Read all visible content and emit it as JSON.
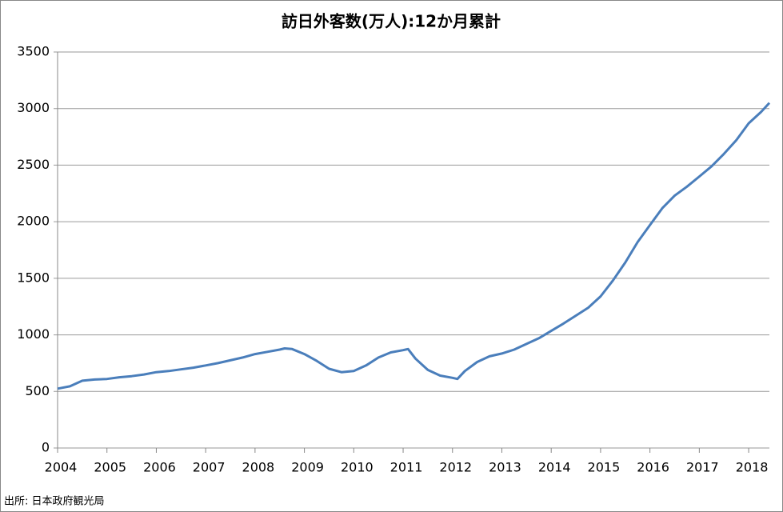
{
  "chart_data": {
    "type": "line",
    "title": "訪日外客数(万人):12か月累計",
    "source": "出所: 日本政府観光局",
    "x": [
      2004.0,
      2004.25,
      2004.5,
      2004.75,
      2005.0,
      2005.25,
      2005.5,
      2005.75,
      2006.0,
      2006.25,
      2006.5,
      2006.75,
      2007.0,
      2007.25,
      2007.5,
      2007.75,
      2008.0,
      2008.25,
      2008.5,
      2008.6,
      2008.75,
      2009.0,
      2009.25,
      2009.5,
      2009.75,
      2010.0,
      2010.25,
      2010.5,
      2010.75,
      2011.0,
      2011.1,
      2011.25,
      2011.5,
      2011.75,
      2012.0,
      2012.1,
      2012.25,
      2012.5,
      2012.75,
      2013.0,
      2013.25,
      2013.5,
      2013.75,
      2014.0,
      2014.25,
      2014.5,
      2014.75,
      2015.0,
      2015.25,
      2015.5,
      2015.75,
      2016.0,
      2016.25,
      2016.5,
      2016.75,
      2017.0,
      2017.25,
      2017.5,
      2017.75,
      2018.0,
      2018.25,
      2018.42
    ],
    "values": [
      525,
      545,
      595,
      605,
      610,
      625,
      635,
      650,
      670,
      680,
      695,
      710,
      730,
      750,
      775,
      800,
      830,
      850,
      870,
      880,
      875,
      830,
      770,
      700,
      670,
      680,
      730,
      800,
      845,
      865,
      875,
      790,
      690,
      640,
      620,
      610,
      680,
      760,
      810,
      835,
      870,
      920,
      970,
      1035,
      1100,
      1170,
      1240,
      1340,
      1480,
      1640,
      1820,
      1970,
      2120,
      2230,
      2310,
      2400,
      2490,
      2600,
      2720,
      2870,
      2970,
      3050
    ],
    "color": "#4a7ebb",
    "xlim": [
      2004,
      2018.42
    ],
    "xticks": [
      2004,
      2005,
      2006,
      2007,
      2008,
      2009,
      2010,
      2011,
      2012,
      2013,
      2014,
      2015,
      2016,
      2017,
      2018
    ],
    "ylim": [
      0,
      3500
    ],
    "yticks": [
      0,
      500,
      1000,
      1500,
      2000,
      2500,
      3000,
      3500
    ],
    "grid": true
  }
}
